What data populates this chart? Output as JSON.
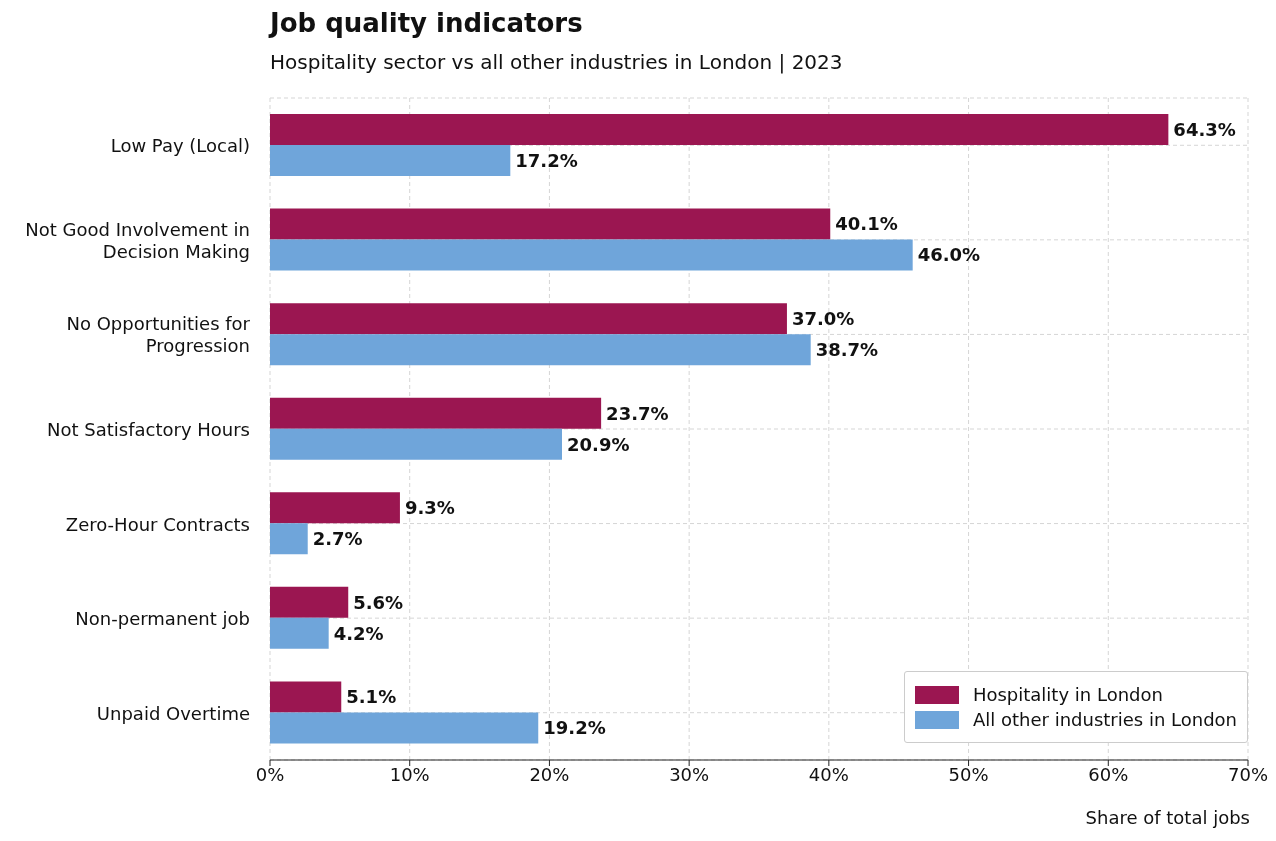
{
  "chart_data": {
    "type": "bar",
    "orientation": "horizontal",
    "title": "Job quality indicators",
    "subtitle": "Hospitality sector vs all other industries in London | 2023",
    "xlabel": "Share of total jobs",
    "categories": [
      "Low Pay (Local)",
      "Not Good Involvement in Decision Making",
      "No Opportunities for Progression",
      "Not Satisfactory Hours",
      "Zero-Hour Contracts",
      "Non-permanent job",
      "Unpaid Overtime"
    ],
    "series": [
      {
        "name": "Hospitality in London",
        "color": "#9b1651",
        "values": [
          64.3,
          40.1,
          37.0,
          23.7,
          9.3,
          5.6,
          5.1
        ],
        "value_labels": [
          "64.3%",
          "40.1%",
          "37.0%",
          "23.7%",
          "9.3%",
          "5.6%",
          "5.1%"
        ]
      },
      {
        "name": "All other industries in London",
        "color": "#6fa5da",
        "values": [
          17.2,
          46.0,
          38.7,
          20.9,
          2.7,
          4.2,
          19.2
        ],
        "value_labels": [
          "17.2%",
          "46.0%",
          "38.7%",
          "20.9%",
          "2.7%",
          "4.2%",
          "19.2%"
        ]
      }
    ],
    "xlim": [
      0,
      70
    ],
    "xticks": [
      {
        "value": 0,
        "label": "0%"
      },
      {
        "value": 10,
        "label": "10%"
      },
      {
        "value": 20,
        "label": "20%"
      },
      {
        "value": 30,
        "label": "30%"
      },
      {
        "value": 40,
        "label": "40%"
      },
      {
        "value": 50,
        "label": "50%"
      },
      {
        "value": 60,
        "label": "60%"
      },
      {
        "value": 70,
        "label": "70%"
      }
    ],
    "grid": true,
    "legend": "bottom right"
  }
}
